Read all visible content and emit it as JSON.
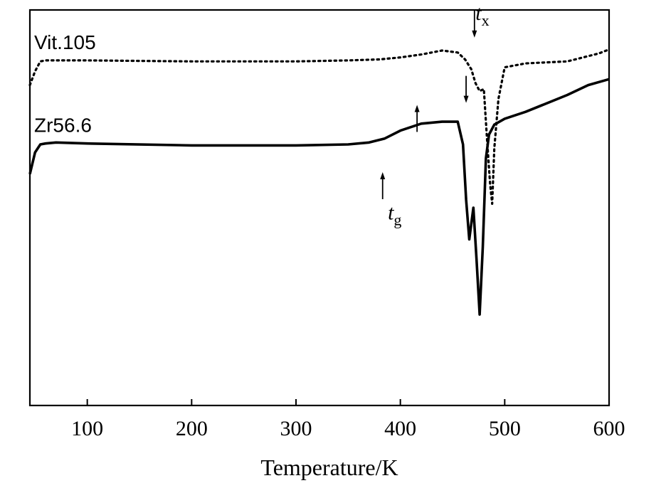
{
  "chart_data": {
    "type": "line",
    "xlabel": "Temperature/K",
    "ylabel": "",
    "xlim": [
      45,
      600
    ],
    "ylim": [
      -14,
      6
    ],
    "xticks": [
      100,
      200,
      300,
      400,
      500,
      600
    ],
    "grid": false,
    "series": [
      {
        "name": "Vit.105",
        "style": "dotted",
        "color": "#000000",
        "x": [
          45,
          50,
          55,
          60,
          100,
          200,
          300,
          350,
          380,
          400,
          420,
          440,
          455,
          462,
          468,
          472,
          476,
          480,
          483,
          486,
          488,
          490,
          494,
          500,
          520,
          560,
          590,
          600
        ],
        "y": [
          2.2,
          2.9,
          3.4,
          3.45,
          3.45,
          3.4,
          3.4,
          3.45,
          3.5,
          3.6,
          3.75,
          3.95,
          3.85,
          3.5,
          3.0,
          2.3,
          1.9,
          2.0,
          -0.5,
          -2.8,
          -3.8,
          -1.0,
          1.5,
          3.1,
          3.3,
          3.4,
          3.8,
          4.0
        ]
      },
      {
        "name": "Zr56.6",
        "style": "solid",
        "color": "#000000",
        "x": [
          45,
          50,
          55,
          60,
          70,
          100,
          200,
          300,
          350,
          370,
          385,
          400,
          420,
          440,
          455,
          460,
          463,
          466,
          470,
          473,
          476,
          479,
          482,
          485,
          490,
          500,
          520,
          560,
          580,
          600
        ],
        "y": [
          -2.3,
          -1.2,
          -0.8,
          -0.75,
          -0.7,
          -0.75,
          -0.85,
          -0.85,
          -0.8,
          -0.7,
          -0.5,
          -0.1,
          0.25,
          0.35,
          0.35,
          -0.8,
          -3.6,
          -5.6,
          -4.0,
          -6.6,
          -9.4,
          -6.0,
          -1.5,
          -0.3,
          0.2,
          0.5,
          0.85,
          1.7,
          2.2,
          2.5
        ]
      }
    ],
    "annotations": [
      {
        "text": "t",
        "subscript": "x",
        "x": 472,
        "y": 5.5
      },
      {
        "text": "t",
        "subscript": "g",
        "x": 388,
        "y": -4.6
      }
    ],
    "markers": [
      {
        "direction": "up",
        "x": 416,
        "y": 1.2
      },
      {
        "direction": "down",
        "x": 471,
        "y": 4.6
      },
      {
        "direction": "down",
        "x": 463,
        "y": 1.3
      },
      {
        "direction": "up",
        "x": 383,
        "y": -2.2
      }
    ]
  }
}
